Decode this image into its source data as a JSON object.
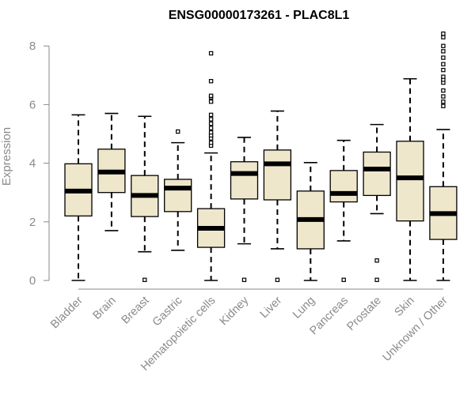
{
  "chart_data": {
    "type": "box",
    "title": "ENSG00000173261 - PLAC8L1",
    "xlabel": "",
    "ylabel": "Expression",
    "ylim": [
      0,
      8.4
    ],
    "yticks": [
      0,
      2,
      4,
      6,
      8
    ],
    "grid": false,
    "categories": [
      "Bladder",
      "Brain",
      "Breast",
      "Gastric",
      "Hematopoietic cells",
      "Kidney",
      "Liver",
      "Lung",
      "Pancreas",
      "Prostate",
      "Skin",
      "Unknown / Other"
    ],
    "boxes": [
      {
        "name": "Bladder",
        "min": 0.0,
        "q1": 2.2,
        "median": 3.05,
        "q3": 3.98,
        "max": 5.65,
        "outliers": []
      },
      {
        "name": "Brain",
        "min": 1.7,
        "q1": 3.0,
        "median": 3.7,
        "q3": 4.48,
        "max": 5.7,
        "outliers": []
      },
      {
        "name": "Breast",
        "min": 0.98,
        "q1": 2.18,
        "median": 2.9,
        "q3": 3.58,
        "max": 5.6,
        "outliers": [
          0.02
        ]
      },
      {
        "name": "Gastric",
        "min": 1.03,
        "q1": 2.35,
        "median": 3.15,
        "q3": 3.45,
        "max": 4.7,
        "outliers": [
          5.08
        ]
      },
      {
        "name": "Hematopoietic cells",
        "min": 0.0,
        "q1": 1.13,
        "median": 1.78,
        "q3": 2.45,
        "max": 4.35,
        "outliers": [
          4.6,
          4.7,
          4.85,
          4.95,
          5.05,
          5.2,
          5.35,
          5.5,
          5.65,
          6.1,
          6.25,
          6.3,
          6.8,
          7.75
        ]
      },
      {
        "name": "Kidney",
        "min": 1.25,
        "q1": 2.78,
        "median": 3.65,
        "q3": 4.05,
        "max": 4.88,
        "outliers": [
          0.02
        ]
      },
      {
        "name": "Liver",
        "min": 1.08,
        "q1": 2.75,
        "median": 3.98,
        "q3": 4.45,
        "max": 5.78,
        "outliers": [
          0.02
        ]
      },
      {
        "name": "Lung",
        "min": 0.0,
        "q1": 1.08,
        "median": 2.08,
        "q3": 3.05,
        "max": 4.02,
        "outliers": []
      },
      {
        "name": "Pancreas",
        "min": 1.35,
        "q1": 2.68,
        "median": 2.97,
        "q3": 3.75,
        "max": 4.78,
        "outliers": [
          0.02
        ]
      },
      {
        "name": "Prostate",
        "min": 2.28,
        "q1": 2.9,
        "median": 3.8,
        "q3": 4.38,
        "max": 5.32,
        "outliers": [
          0.02,
          0.68
        ]
      },
      {
        "name": "Skin",
        "min": 0.0,
        "q1": 2.03,
        "median": 3.5,
        "q3": 4.75,
        "max": 6.88,
        "outliers": []
      },
      {
        "name": "Unknown / Other",
        "min": 0.0,
        "q1": 1.4,
        "median": 2.28,
        "q3": 3.2,
        "max": 5.15,
        "outliers": [
          5.95,
          6.1,
          6.28,
          6.48,
          6.75,
          6.85,
          6.95,
          7.18,
          7.38,
          7.6,
          7.82,
          8.0,
          8.3,
          8.42
        ]
      }
    ]
  },
  "colors": {
    "box_fill": "#eee7cc",
    "box_stroke": "#000000",
    "axis": "#8a8a8a",
    "text": "#8a8a8a",
    "title": "#000000"
  }
}
